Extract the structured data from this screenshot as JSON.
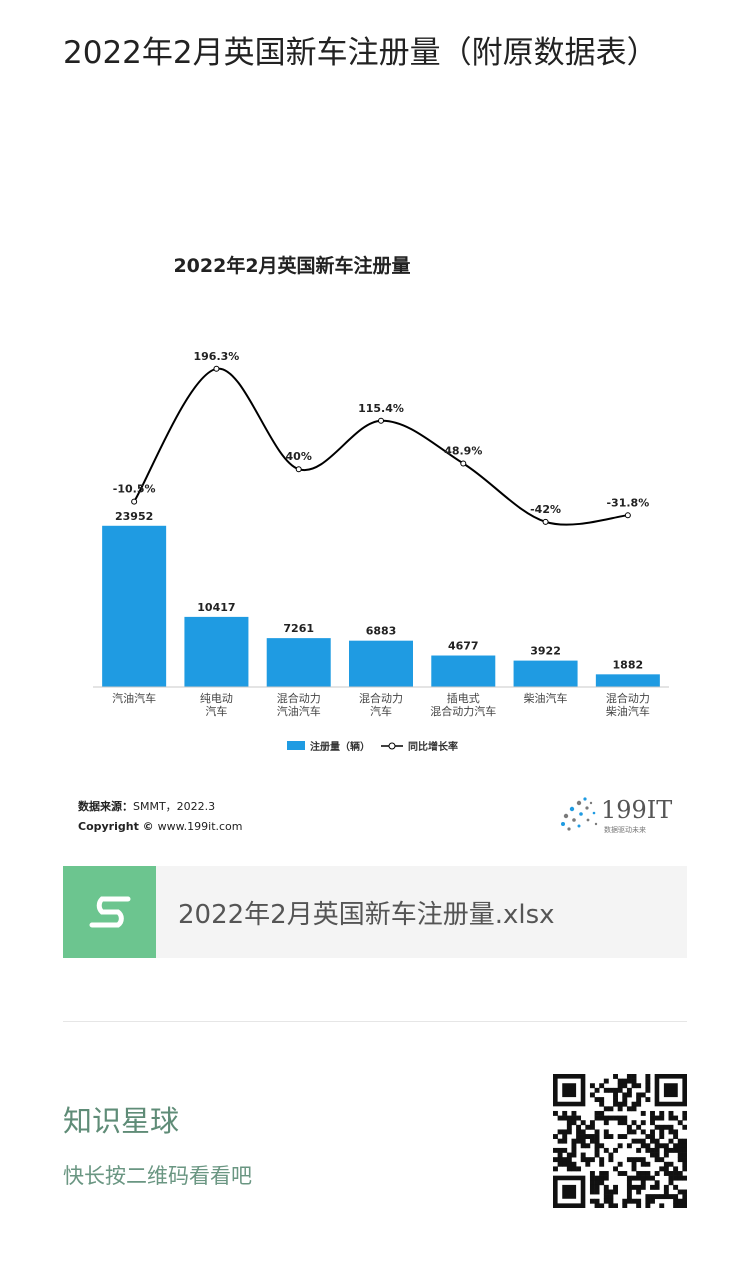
{
  "article": {
    "title": "2022年2月英国新车注册量（附原数据表）"
  },
  "chart_data": {
    "type": "bar",
    "title": "2022年2月英国新车注册量",
    "categories": [
      [
        "汽油汽车"
      ],
      [
        "纯电动",
        "汽车"
      ],
      [
        "混合动力",
        "汽油汽车"
      ],
      [
        "混合动力",
        "汽车"
      ],
      [
        "插电式",
        "混合动力汽车"
      ],
      [
        "柴油汽车"
      ],
      [
        "混合动力",
        "柴油汽车"
      ]
    ],
    "series": [
      {
        "name": "注册量（辆）",
        "type": "bar",
        "values": [
          23952,
          10417,
          7261,
          6883,
          4677,
          3922,
          1882
        ],
        "color": "#1f9be2"
      },
      {
        "name": "同比增长率",
        "type": "line",
        "values": [
          -10.5,
          196.3,
          40,
          115.4,
          48.9,
          -42,
          -31.8
        ],
        "labels": [
          "-10.5%",
          "196.3%",
          "40%",
          "115.4%",
          "48.9%",
          "-42%",
          "-31.8%"
        ],
        "color": "#000000"
      }
    ],
    "legend_position": "bottom",
    "source_label": "数据来源：",
    "source_text": "SMMT，2022.3",
    "copyright_label": "Copyright ©",
    "copyright_text": "www.199it.com",
    "brand": {
      "name": "199IT",
      "tagline": "数据驱动未来"
    }
  },
  "attachment": {
    "icon": "spreadsheet-s-icon",
    "filename": "2022年2月英国新车注册量.xlsx",
    "icon_color": "#6cc58f"
  },
  "promo": {
    "title": "知识星球",
    "subtitle": "快长按二维码看看吧",
    "qr_icon": "qr-code-icon"
  }
}
